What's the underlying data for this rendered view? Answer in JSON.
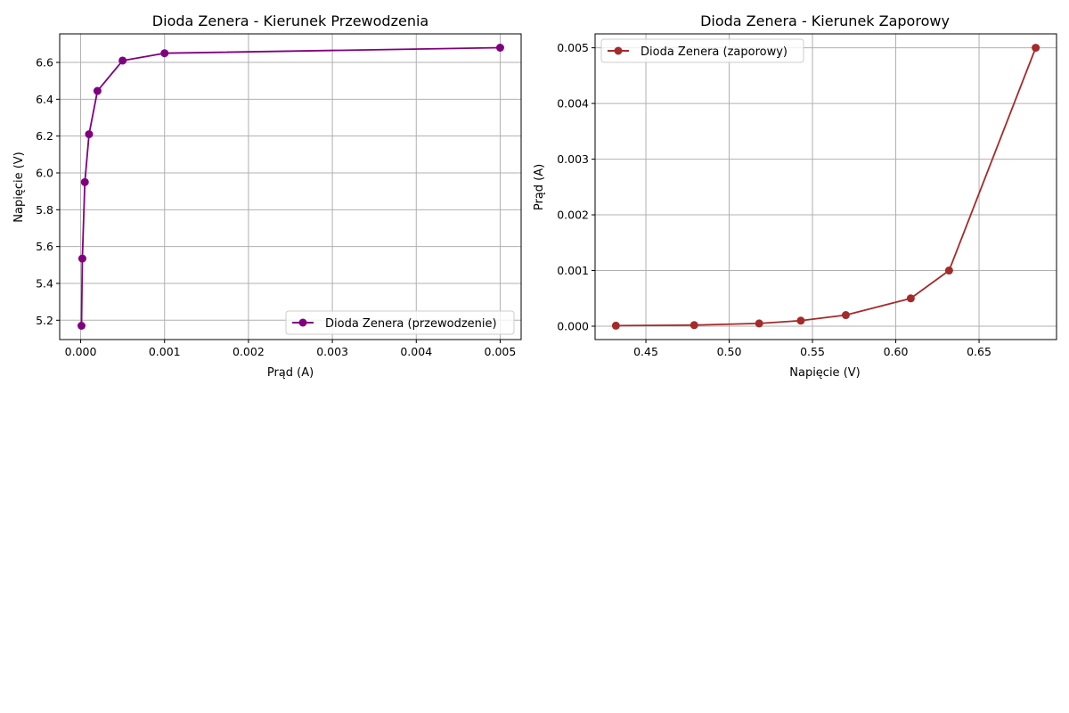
{
  "chart_data": [
    {
      "type": "line",
      "title": "Dioda Zenera - Kierunek Przewodzenia",
      "xlabel": "Prąd (A)",
      "ylabel": "Napięcie (V)",
      "xlim": [
        -0.00025,
        0.00525
      ],
      "ylim": [
        5.095,
        6.755
      ],
      "xticks": [
        0.0,
        0.001,
        0.002,
        0.003,
        0.004,
        0.005
      ],
      "xtick_labels": [
        "0.000",
        "0.001",
        "0.002",
        "0.003",
        "0.004",
        "0.005"
      ],
      "yticks": [
        5.2,
        5.4,
        5.6,
        5.8,
        6.0,
        6.2,
        6.4,
        6.6
      ],
      "ytick_labels": [
        "5.2",
        "5.4",
        "5.6",
        "5.8",
        "6.0",
        "6.2",
        "6.4",
        "6.6"
      ],
      "grid": true,
      "legend_position": "lower-right",
      "series": [
        {
          "name": "Dioda Zenera (przewodzenie)",
          "color": "#800080",
          "marker": "circle",
          "x": [
            1e-05,
            2e-05,
            5e-05,
            0.0001,
            0.0002,
            0.0005,
            0.001,
            0.005
          ],
          "y": [
            5.17,
            5.535,
            5.95,
            6.21,
            6.445,
            6.61,
            6.65,
            6.68
          ]
        }
      ]
    },
    {
      "type": "line",
      "title": "Dioda Zenera - Kierunek Zaporowy",
      "xlabel": "Napięcie (V)",
      "ylabel": "Prąd (A)",
      "xlim": [
        0.4195,
        0.6965
      ],
      "ylim": [
        -0.00024,
        0.00525
      ],
      "xticks": [
        0.45,
        0.5,
        0.55,
        0.6,
        0.65
      ],
      "xtick_labels": [
        "0.45",
        "0.50",
        "0.55",
        "0.60",
        "0.65"
      ],
      "yticks": [
        0.0,
        0.001,
        0.002,
        0.003,
        0.004,
        0.005
      ],
      "ytick_labels": [
        "0.000",
        "0.001",
        "0.002",
        "0.003",
        "0.004",
        "0.005"
      ],
      "grid": true,
      "legend_position": "upper-left",
      "series": [
        {
          "name": "Dioda Zenera (zaporowy)",
          "color": "#a52a2a",
          "marker": "circle",
          "x": [
            0.432,
            0.479,
            0.518,
            0.543,
            0.57,
            0.609,
            0.632,
            0.684
          ],
          "y": [
            1e-05,
            2e-05,
            5e-05,
            0.0001,
            0.0002,
            0.0005,
            0.001,
            0.005
          ]
        }
      ]
    }
  ]
}
